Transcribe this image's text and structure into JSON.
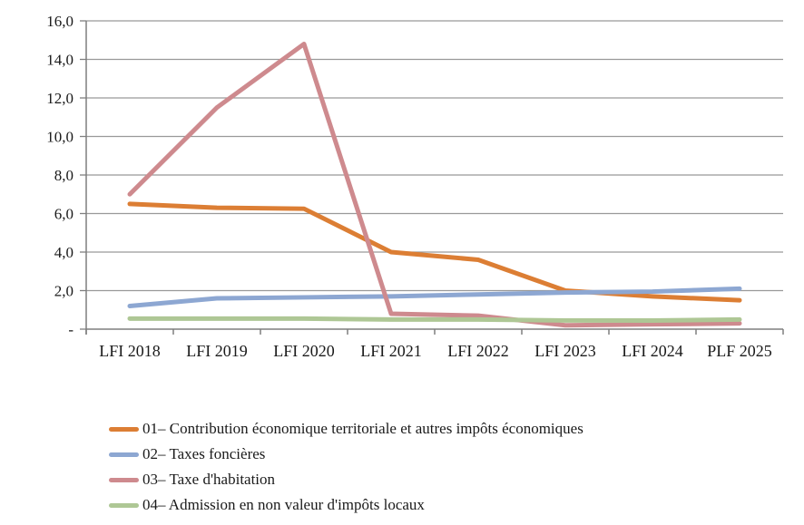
{
  "chart_data": {
    "type": "line",
    "title": "",
    "xlabel": "",
    "ylabel": "",
    "grid": true,
    "legend_position": "bottom-left",
    "categories": [
      "LFI 2018",
      "LFI 2019",
      "LFI 2020",
      "LFI 2021",
      "LFI 2022",
      "LFI 2023",
      "LFI 2024",
      "PLF 2025"
    ],
    "series": [
      {
        "name": "01– Contribution économique territoriale et autres impôts économiques",
        "color": "#DC7E34",
        "values": [
          6.5,
          6.3,
          6.25,
          4.0,
          3.6,
          2.0,
          1.7,
          1.5
        ]
      },
      {
        "name": "02– Taxes foncières",
        "color": "#8DA7D2",
        "values": [
          1.2,
          1.6,
          1.65,
          1.7,
          1.8,
          1.9,
          1.95,
          2.1
        ]
      },
      {
        "name": "03– Taxe d'habitation",
        "color": "#CE8A8E",
        "values": [
          7.0,
          11.5,
          14.8,
          0.8,
          0.7,
          0.2,
          0.25,
          0.3
        ]
      },
      {
        "name": "04– Admission en non valeur d'impôts locaux",
        "color": "#AEC795",
        "values": [
          0.55,
          0.55,
          0.55,
          0.5,
          0.5,
          0.45,
          0.45,
          0.5
        ]
      }
    ],
    "ylim": [
      0,
      16
    ],
    "yticks": [
      {
        "value": 0,
        "label": "-"
      },
      {
        "value": 2,
        "label": "2,0"
      },
      {
        "value": 4,
        "label": "4,0"
      },
      {
        "value": 6,
        "label": "6,0"
      },
      {
        "value": 8,
        "label": "8,0"
      },
      {
        "value": 10,
        "label": "10,0"
      },
      {
        "value": 12,
        "label": "12,0"
      },
      {
        "value": 14,
        "label": "14,0"
      },
      {
        "value": 16,
        "label": "16,0"
      }
    ],
    "colors": {
      "grid": "#999999",
      "axis": "#7f7f7f",
      "text": "#1a1a1a",
      "background": "#ffffff"
    }
  }
}
